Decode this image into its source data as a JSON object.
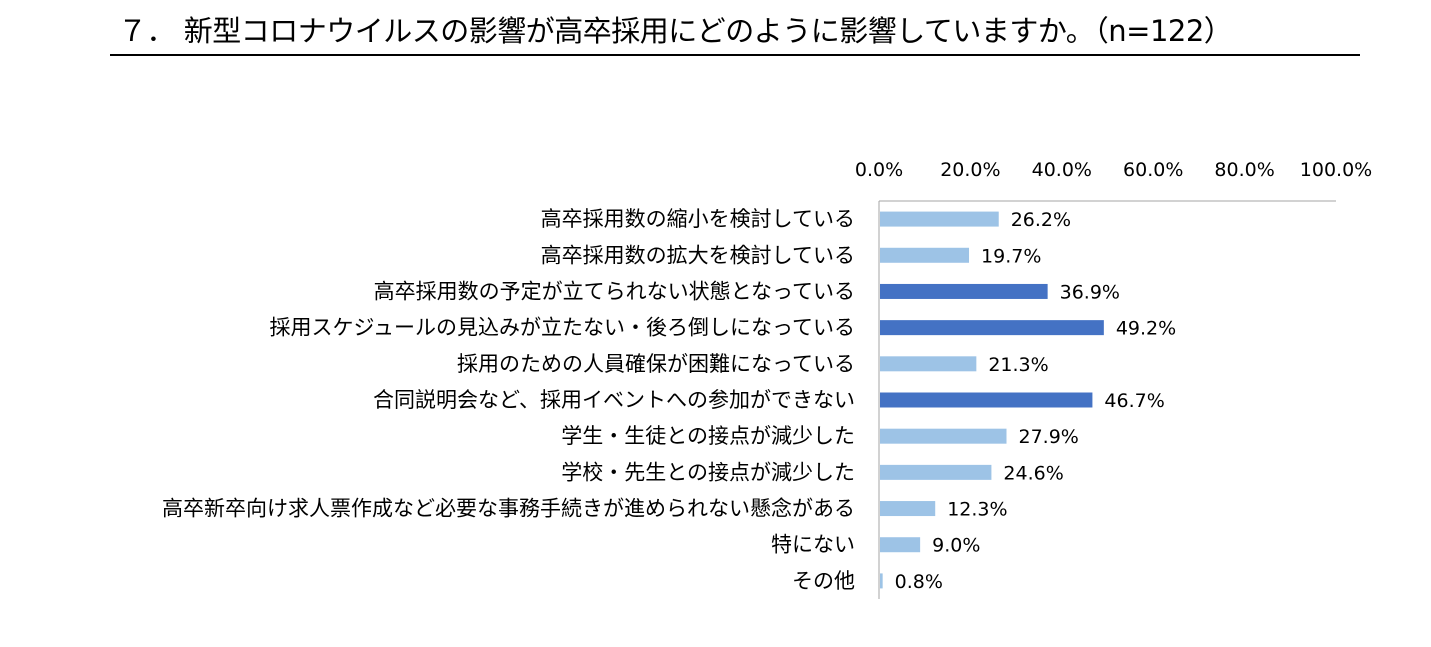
{
  "title": "７． 新型コロナウイルスの影響が高卒採用にどのように影響していますか。（n=122）",
  "chart_data": {
    "type": "bar",
    "orientation": "horizontal",
    "xlim": [
      0,
      100
    ],
    "ticks": [
      "0.0%",
      "20.0%",
      "40.0%",
      "60.0%",
      "80.0%",
      "100.0%"
    ],
    "tick_values": [
      0,
      20,
      40,
      60,
      80,
      100
    ],
    "grid": false,
    "colors": {
      "normal": "#9DC3E6",
      "highlight": "#4472C4"
    },
    "categories": [
      "高卒採用数の縮小を検討している",
      "高卒採用数の拡大を検討している",
      "高卒採用数の予定が立てられない状態となっている",
      "採用スケジュールの見込みが立たない・後ろ倒しになっている",
      "採用のための人員確保が困難になっている",
      "合同説明会など、採用イベントへの参加ができない",
      "学生・生徒との接点が減少した",
      "学校・先生との接点が減少した",
      "高卒新卒向け求人票作成など必要な事務手続きが進められない懸念がある",
      "特にない",
      "その他"
    ],
    "values": [
      26.2,
      19.7,
      36.9,
      49.2,
      21.3,
      46.7,
      27.9,
      24.6,
      12.3,
      9.0,
      0.8
    ],
    "value_labels": [
      "26.2%",
      "19.7%",
      "36.9%",
      "49.2%",
      "21.3%",
      "46.7%",
      "27.9%",
      "24.6%",
      "12.3%",
      "9.0%",
      "0.8%"
    ],
    "highlight": [
      false,
      false,
      true,
      true,
      false,
      true,
      false,
      false,
      false,
      false,
      false
    ]
  }
}
